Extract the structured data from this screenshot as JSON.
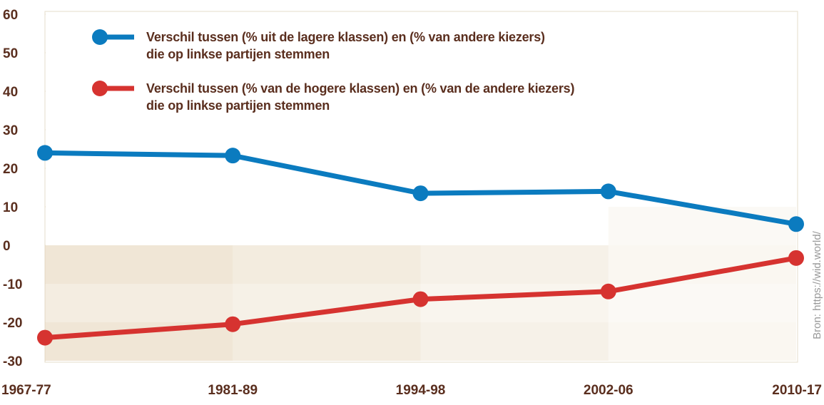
{
  "chart_data": {
    "type": "line",
    "categories": [
      "1967-77",
      "1981-89",
      "1994-98",
      "2002-06",
      "2010-17"
    ],
    "series": [
      {
        "name": "Verschil tussen (% uit de lagere klassen) en (% van andere kiezers)\ndie op linkse partijen stemmen",
        "color": "#0b7bbf",
        "values": [
          24,
          23.3,
          13.5,
          14,
          5.5
        ]
      },
      {
        "name": "Verschil tussen (% van de hogere klassen) en (% van de andere kiezers)\ndie op linkse partijen stemmen",
        "color": "#d63330",
        "values": [
          -24,
          -20.5,
          -14,
          -12,
          -3.3
        ]
      }
    ],
    "ylim": [
      -30,
      60
    ],
    "yticks": [
      -30,
      -20,
      -10,
      0,
      10,
      20,
      30,
      40,
      50,
      60
    ],
    "source": "Bron: https://wid.world/"
  }
}
